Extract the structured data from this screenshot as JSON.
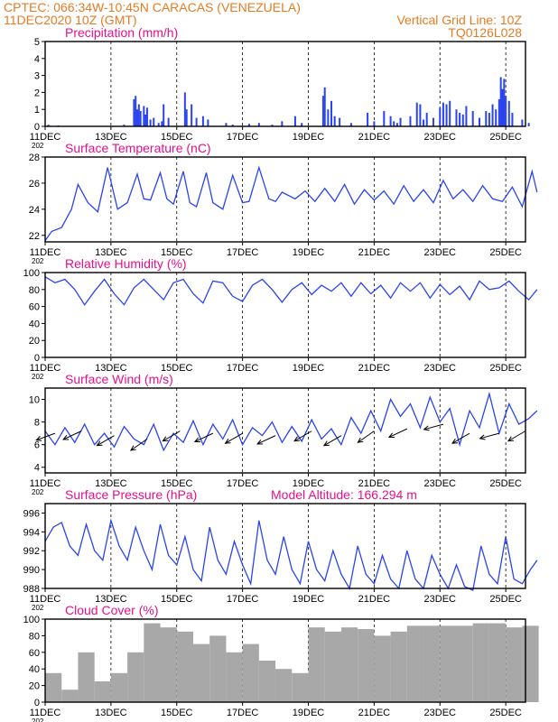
{
  "header": {
    "left_line1": "CPTEC:   066:34W-10:45N   CARACAS (VENEZUELA)",
    "left_line2": "11DEC2020 10Z (GMT)",
    "right_line1": "Vertical Grid Line: 10Z",
    "right_line2": "TQ0126L028"
  },
  "x_axis": {
    "start": "11DEC2020 10Z",
    "end": "26DEC2020 00Z",
    "ticks": [
      "11DEC",
      "13DEC",
      "15DEC",
      "17DEC",
      "19DEC",
      "21DEC",
      "23DEC",
      "25DEC"
    ],
    "year_label": "202"
  },
  "colors": {
    "series": "#2a44f0",
    "cloud": "#a8a8a8",
    "header": "#e87b22",
    "title": "#e8108a"
  },
  "chart_data": [
    {
      "id": "precip",
      "type": "bar",
      "title": "Precipitation (mm/h)",
      "ylim": [
        0,
        5
      ],
      "yticks": [
        0,
        1,
        2,
        3,
        4,
        5
      ],
      "x_days": [
        0.1,
        0.4,
        2.4,
        2.7,
        2.75,
        2.8,
        2.85,
        2.9,
        3.0,
        3.05,
        3.1,
        3.2,
        3.3,
        3.45,
        3.55,
        3.6,
        3.75,
        4.25,
        4.3,
        4.45,
        4.6,
        4.8,
        4.95,
        5.5,
        5.7,
        6.2,
        6.5,
        6.9,
        7.2,
        7.6,
        7.8,
        8.45,
        8.5,
        8.6,
        8.7,
        8.8,
        8.95,
        9.3,
        9.8,
        10.0,
        10.3,
        10.5,
        10.6,
        10.7,
        10.8,
        11.1,
        11.3,
        11.4,
        11.5,
        11.6,
        11.8,
        12.0,
        12.1,
        12.2,
        12.3,
        12.5,
        12.6,
        12.7,
        12.8,
        13.0,
        13.2,
        13.4,
        13.5,
        13.6,
        13.7,
        13.8,
        13.85,
        13.9,
        13.95,
        14.0,
        14.1,
        14.2,
        14.5,
        14.7
      ],
      "values": [
        0.1,
        0.05,
        0.1,
        1.6,
        1.8,
        1.0,
        1.3,
        0.9,
        1.2,
        0.7,
        1.1,
        0.4,
        0.5,
        0.2,
        0.3,
        1.3,
        0.5,
        2.0,
        1.0,
        1.3,
        0.5,
        0.6,
        0.4,
        0.2,
        0.1,
        0.15,
        0.2,
        0.1,
        0.3,
        0.6,
        0.2,
        1.8,
        2.3,
        1.0,
        1.5,
        0.6,
        0.5,
        0.2,
        0.8,
        0.3,
        0.9,
        0.6,
        0.3,
        0.2,
        0.5,
        0.6,
        1.4,
        1.3,
        0.4,
        0.8,
        0.5,
        1.1,
        1.4,
        1.3,
        1.5,
        1.0,
        0.8,
        0.7,
        1.2,
        0.9,
        0.5,
        0.9,
        0.8,
        1.3,
        1.0,
        1.6,
        2.9,
        2.2,
        2.8,
        1.8,
        1.5,
        0.8,
        0.4,
        0.2
      ]
    },
    {
      "id": "temp",
      "type": "line",
      "title": "Surface Temperature (nC)",
      "ylim": [
        21.5,
        28
      ],
      "yticks": [
        22,
        24,
        26,
        28
      ],
      "x_days": [
        0,
        0.2,
        0.5,
        0.8,
        1.0,
        1.3,
        1.6,
        1.9,
        2.2,
        2.5,
        2.8,
        3.0,
        3.2,
        3.5,
        3.7,
        3.9,
        4.2,
        4.4,
        4.6,
        4.9,
        5.1,
        5.4,
        5.7,
        6.0,
        6.2,
        6.5,
        6.8,
        7.0,
        7.2,
        7.6,
        7.9,
        8.2,
        8.5,
        8.8,
        9.1,
        9.4,
        9.7,
        10.0,
        10.3,
        10.6,
        10.9,
        11.2,
        11.5,
        11.8,
        12.1,
        12.4,
        12.7,
        13.0,
        13.3,
        13.6,
        13.9,
        14.2,
        14.5,
        14.8,
        14.95
      ],
      "values": [
        21.6,
        22.3,
        22.6,
        24.0,
        25.9,
        24.5,
        23.8,
        27.2,
        24.0,
        24.5,
        26.7,
        24.8,
        24.7,
        26.8,
        24.8,
        24.4,
        26.9,
        24.5,
        24.2,
        26.8,
        24.5,
        24.0,
        26.6,
        24.5,
        24.6,
        27.2,
        24.8,
        24.6,
        25.3,
        24.8,
        25.4,
        24.6,
        25.6,
        24.6,
        25.9,
        24.4,
        25.5,
        24.7,
        25.4,
        24.4,
        25.8,
        24.6,
        25.5,
        24.5,
        26.2,
        24.8,
        25.5,
        24.6,
        25.8,
        24.8,
        24.6,
        25.7,
        24.2,
        26.9,
        25.3
      ]
    },
    {
      "id": "rh",
      "type": "line",
      "title": "Relative Humidity (%)",
      "ylim": [
        0,
        100
      ],
      "yticks": [
        0,
        20,
        40,
        60,
        80,
        100
      ],
      "x_days": [
        0,
        0.3,
        0.6,
        0.9,
        1.2,
        1.5,
        1.8,
        2.1,
        2.4,
        2.7,
        3.0,
        3.3,
        3.6,
        3.9,
        4.2,
        4.5,
        4.8,
        5.1,
        5.4,
        5.7,
        6.0,
        6.3,
        6.6,
        6.9,
        7.2,
        7.5,
        7.8,
        8.1,
        8.4,
        8.7,
        9.0,
        9.3,
        9.6,
        9.9,
        10.2,
        10.5,
        10.8,
        11.1,
        11.4,
        11.7,
        12.0,
        12.3,
        12.6,
        12.9,
        13.2,
        13.5,
        13.8,
        14.1,
        14.4,
        14.7,
        14.95
      ],
      "values": [
        95,
        88,
        92,
        80,
        62,
        78,
        92,
        75,
        62,
        82,
        92,
        80,
        68,
        88,
        92,
        75,
        64,
        90,
        88,
        72,
        66,
        85,
        92,
        80,
        65,
        80,
        88,
        74,
        85,
        78,
        88,
        72,
        88,
        75,
        85,
        70,
        88,
        78,
        88,
        70,
        86,
        74,
        84,
        68,
        90,
        80,
        82,
        90,
        78,
        68,
        80
      ]
    },
    {
      "id": "wind",
      "type": "line",
      "title": "Surface Wind (m/s)",
      "ylim": [
        3.5,
        11
      ],
      "yticks": [
        4,
        6,
        8,
        10
      ],
      "x_days": [
        0,
        0.3,
        0.6,
        0.9,
        1.2,
        1.5,
        1.8,
        2.1,
        2.4,
        2.7,
        3.0,
        3.3,
        3.6,
        3.9,
        4.2,
        4.5,
        4.8,
        5.1,
        5.4,
        5.7,
        6.0,
        6.3,
        6.6,
        6.9,
        7.2,
        7.5,
        7.8,
        8.1,
        8.4,
        8.7,
        9.0,
        9.3,
        9.6,
        9.9,
        10.2,
        10.5,
        10.8,
        11.1,
        11.4,
        11.7,
        12.0,
        12.3,
        12.6,
        12.9,
        13.2,
        13.5,
        13.8,
        14.1,
        14.4,
        14.7,
        14.95
      ],
      "values": [
        7.2,
        6.0,
        7.5,
        6.2,
        7.8,
        6.0,
        7.0,
        5.8,
        7.6,
        6.5,
        6.0,
        7.8,
        5.5,
        7.0,
        6.2,
        8.1,
        6.0,
        7.8,
        6.5,
        8.2,
        6.0,
        7.5,
        6.8,
        8.0,
        6.2,
        7.6,
        6.3,
        8.2,
        6.5,
        7.4,
        6.0,
        8.4,
        7.0,
        9.0,
        7.2,
        10.0,
        8.5,
        9.6,
        7.5,
        10.2,
        8.0,
        9.2,
        6.0,
        9.0,
        7.5,
        10.5,
        7.0,
        9.6,
        7.8,
        8.3,
        9.0
      ],
      "arrow_days": [
        0.3,
        1.1,
        2.1,
        3.1,
        4.1,
        5.1,
        6.0,
        7.0,
        8.1,
        9.0,
        10.0,
        11.0,
        12.1,
        12.9,
        13.8,
        14.6
      ],
      "arrow_speed": [
        7.0,
        7.2,
        6.8,
        6.5,
        7.2,
        7.0,
        7.0,
        6.8,
        7.2,
        6.8,
        7.2,
        7.4,
        7.8,
        7.0,
        7.0,
        7.2
      ],
      "arrow_angle": [
        200,
        205,
        210,
        215,
        210,
        205,
        210,
        205,
        210,
        210,
        215,
        205,
        195,
        210,
        195,
        210
      ]
    },
    {
      "id": "pres",
      "type": "line",
      "title": "Surface Pressure (hPa)",
      "annotation": "Model Altitude: 166.294 m",
      "ylim": [
        988,
        997
      ],
      "yticks": [
        988,
        990,
        992,
        994,
        996
      ],
      "x_days": [
        0,
        0.25,
        0.5,
        0.75,
        1.0,
        1.25,
        1.5,
        1.75,
        2.0,
        2.25,
        2.5,
        2.75,
        3.0,
        3.25,
        3.5,
        3.75,
        4.0,
        4.25,
        4.5,
        4.75,
        5.0,
        5.25,
        5.5,
        5.75,
        6.0,
        6.25,
        6.5,
        6.75,
        7.0,
        7.25,
        7.5,
        7.75,
        8.0,
        8.25,
        8.5,
        8.75,
        9.0,
        9.25,
        9.5,
        9.75,
        10.0,
        10.25,
        10.5,
        10.75,
        11.0,
        11.25,
        11.5,
        11.75,
        12.0,
        12.25,
        12.5,
        12.75,
        13.0,
        13.25,
        13.5,
        13.75,
        14.0,
        14.25,
        14.5,
        14.75,
        14.95
      ],
      "values": [
        993.0,
        994.5,
        995.0,
        992.5,
        991.5,
        994.8,
        992.0,
        991.0,
        995.2,
        992.5,
        991.0,
        994.5,
        992.0,
        990.0,
        994.8,
        991.5,
        990.5,
        993.5,
        990.0,
        988.8,
        994.5,
        991.0,
        989.5,
        993.0,
        990.5,
        988.5,
        995.2,
        991.0,
        989.5,
        993.5,
        990.0,
        988.5,
        993.0,
        990.0,
        988.8,
        992.0,
        989.5,
        988.0,
        992.5,
        989.5,
        988.5,
        991.5,
        989.0,
        988.0,
        992.0,
        989.0,
        988.0,
        991.5,
        989.5,
        988.0,
        990.5,
        988.2,
        987.8,
        992.5,
        989.5,
        988.5,
        993.5,
        989.0,
        988.5,
        990.0,
        991.0
      ]
    },
    {
      "id": "cloud",
      "type": "bar",
      "title": "Cloud Cover (%)",
      "ylim": [
        0,
        100
      ],
      "yticks": [
        0,
        20,
        40,
        60,
        80,
        100
      ],
      "x_days": [
        0,
        0.5,
        1.0,
        1.5,
        2.0,
        2.5,
        3.0,
        3.5,
        4.0,
        4.5,
        5.0,
        5.5,
        6.0,
        6.5,
        7.0,
        7.5,
        8.0,
        8.5,
        9.0,
        9.5,
        10.0,
        10.5,
        11.0,
        11.5,
        12.0,
        12.5,
        13.0,
        13.5,
        14.0,
        14.5
      ],
      "values": [
        35,
        15,
        60,
        25,
        35,
        60,
        95,
        90,
        85,
        70,
        80,
        60,
        70,
        50,
        40,
        35,
        90,
        85,
        90,
        88,
        80,
        85,
        92,
        92,
        92,
        92,
        95,
        95,
        90,
        92
      ]
    }
  ]
}
